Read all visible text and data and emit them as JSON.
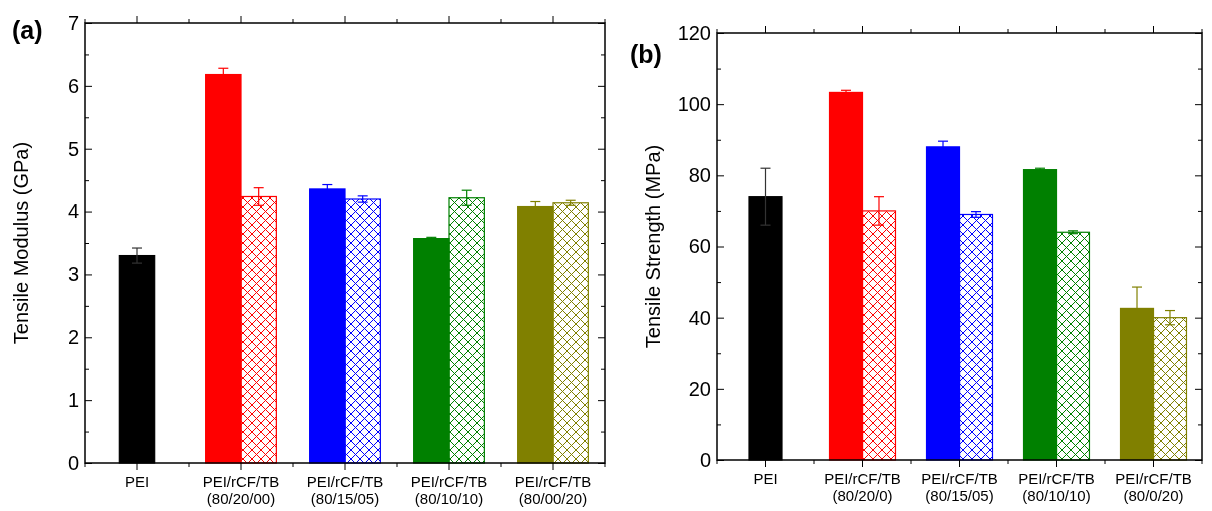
{
  "chart_data": [
    {
      "type": "bar",
      "ylabel": "Tensile Modulus (GPa)",
      "annotations": [
        "(a)"
      ],
      "categories": [
        "PEI",
        "PEI/rCF/TB\n(80/20/00)",
        "PEI/rCF/TB\n(80/15/05)",
        "PEI/rCF/TB\n(80/10/10)",
        "PEI/rCF/TB\n(80/00/20)"
      ],
      "series": [
        {
          "colors": [
            "#000000",
            "#ff0000",
            "#0000ff",
            "#008000",
            "#808000"
          ],
          "values": [
            3.3,
            6.18,
            4.36,
            3.57,
            4.08
          ],
          "errors": [
            0.12,
            0.1,
            0.07,
            0.02,
            0.08
          ]
        },
        {
          "colors": [
            null,
            "#ff0000",
            "#0000ff",
            "#008000",
            "#808000"
          ],
          "values": [
            null,
            4.24,
            4.2,
            4.22,
            4.14
          ],
          "errors": [
            null,
            0.14,
            0.05,
            0.12,
            0.04
          ]
        }
      ],
      "ylim": [
        0,
        7
      ],
      "yticks": [
        0,
        {
          "value": 0.5,
          "label": null
        },
        1,
        {
          "value": 1.5,
          "label": null
        },
        2,
        {
          "value": 2.5,
          "label": null
        },
        3,
        {
          "value": 3.5,
          "label": null
        },
        4,
        {
          "value": 4.5,
          "label": null
        },
        5,
        {
          "value": 5.5,
          "label": null
        },
        6,
        {
          "value": 6.5,
          "label": null
        },
        7
      ],
      "grid": false
    },
    {
      "type": "bar",
      "ylabel": "Tensile Strength (MPa)",
      "annotations": [
        "(b)"
      ],
      "categories": [
        "PEI",
        "PEI/rCF/TB\n(80/20/0)",
        "PEI/rCF/TB\n(80/15/05)",
        "PEI/rCF/TB\n(80/10/10)",
        "PEI/rCF/TB\n(80/0/20)"
      ],
      "series": [
        {
          "colors": [
            "#000000",
            "#ff0000",
            "#0000ff",
            "#008000",
            "#808000"
          ],
          "values": [
            74,
            103.3,
            88,
            81.6,
            42.6
          ],
          "errors": [
            8,
            0.6,
            1.6,
            0.4,
            6
          ]
        },
        {
          "colors": [
            null,
            "#ff0000",
            "#0000ff",
            "#008000",
            "#808000"
          ],
          "values": [
            null,
            70,
            69,
            64,
            40
          ],
          "errors": [
            null,
            4,
            0.8,
            0.4,
            2
          ]
        }
      ],
      "ylim": [
        0,
        120
      ],
      "yticks": [
        0,
        {
          "value": 10,
          "label": null
        },
        20,
        {
          "value": 30,
          "label": null
        },
        40,
        {
          "value": 50,
          "label": null
        },
        60,
        {
          "value": 70,
          "label": null
        },
        80,
        {
          "value": 90,
          "label": null
        },
        100,
        {
          "value": 110,
          "label": null
        },
        120
      ],
      "grid": false
    }
  ]
}
